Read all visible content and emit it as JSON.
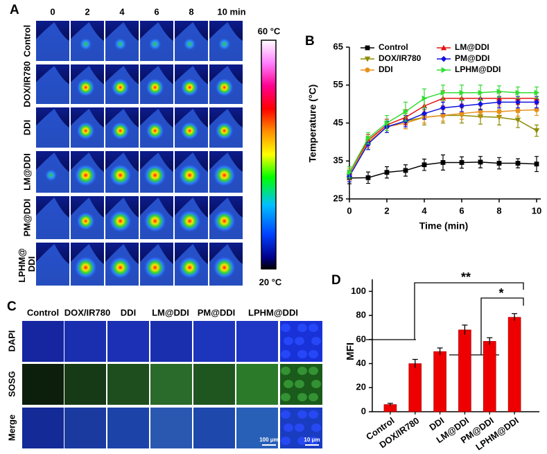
{
  "panel_a": {
    "label": "A",
    "times": [
      "0",
      "2",
      "4",
      "6",
      "8",
      "10 min"
    ],
    "rows": [
      "Control",
      "DOX/IR780",
      "DDI",
      "LM@DDI",
      "PM@DDI",
      "LPHM@ DDI"
    ],
    "colorbar": {
      "max_label": "60 °C",
      "min_label": "20 °C"
    }
  },
  "panel_c": {
    "label": "C",
    "columns": [
      "Control",
      "DOX/IR780",
      "DDI",
      "LM@DDI",
      "PM@DDI",
      "LPHM@DDI"
    ],
    "rows": [
      "DAPI",
      "SOSG",
      "Merge"
    ],
    "scale_bars": [
      "100 μm",
      "10 μm"
    ]
  },
  "chart_data": [
    {
      "type": "line",
      "panel_label": "B",
      "x_label": "Time (min)",
      "y_label": "Temperature (°C)",
      "x": [
        0,
        1,
        2,
        3,
        4,
        5,
        6,
        7,
        8,
        9,
        10
      ],
      "series": [
        {
          "name": "Control",
          "color": "#000000",
          "marker": "square",
          "values": [
            30.5,
            30.6,
            32,
            32.5,
            34,
            34.6,
            34.6,
            34.7,
            34.4,
            34.4,
            34.2
          ],
          "errors": [
            1.5,
            1.5,
            1.5,
            1.5,
            1.5,
            2,
            1.5,
            1.5,
            1.5,
            1.2,
            2
          ]
        },
        {
          "name": "DOX/IR780",
          "color": "#8c8c00",
          "marker": "triangle-down",
          "values": [
            31,
            40,
            44,
            45.5,
            46.5,
            47,
            47,
            46.7,
            46.5,
            45.8,
            43
          ],
          "errors": [
            1.5,
            2,
            1.5,
            2,
            2,
            2,
            2,
            2,
            2,
            2,
            1.5
          ]
        },
        {
          "name": "DDI",
          "color": "#e8901c",
          "marker": "circle",
          "values": [
            31.5,
            40,
            44,
            45,
            46.5,
            47,
            47.5,
            48,
            48,
            48.3,
            48.5
          ],
          "errors": [
            1.5,
            1.5,
            1.5,
            1.5,
            1.5,
            1.5,
            1.5,
            1.5,
            1.5,
            1.5,
            1.5
          ]
        },
        {
          "name": "LM@DDI",
          "color": "#e81010",
          "marker": "triangle-up",
          "values": [
            32,
            40.5,
            44.5,
            46.5,
            49.5,
            51.5,
            51.5,
            51.5,
            51.5,
            51.5,
            51.5
          ],
          "errors": [
            1.5,
            1.5,
            1.5,
            2,
            2,
            2,
            1.5,
            1.5,
            1.5,
            1.5,
            1.5
          ]
        },
        {
          "name": "PM@DDI",
          "color": "#1010e0",
          "marker": "diamond",
          "values": [
            31,
            39.5,
            44,
            45.5,
            47.5,
            49,
            49.5,
            50,
            50.5,
            50.5,
            50.5
          ],
          "errors": [
            1.5,
            1.5,
            1.5,
            1.5,
            1.5,
            1.5,
            1.5,
            1.5,
            1.5,
            1.5,
            1.5
          ]
        },
        {
          "name": "LPHM@DDI",
          "color": "#33dd33",
          "marker": "triangle-right",
          "values": [
            32,
            41,
            45,
            48,
            51.5,
            53,
            53,
            53,
            53.3,
            53,
            53
          ],
          "errors": [
            1.5,
            1.5,
            2,
            2.5,
            2.5,
            2,
            2,
            2,
            1.5,
            1.5,
            1.5
          ]
        }
      ],
      "xlim": [
        0,
        10
      ],
      "ylim": [
        25,
        65
      ],
      "xticks": [
        0,
        2,
        4,
        6,
        8,
        10
      ],
      "yticks": [
        25,
        35,
        45,
        55,
        65
      ],
      "legend": "top-left"
    },
    {
      "type": "bar",
      "panel_label": "D",
      "y_label": "MFI",
      "categories": [
        "Control",
        "DOX/IR780",
        "DDI",
        "LM@DDI",
        "PM@DDI",
        "LPHM@DDI"
      ],
      "values": [
        6,
        40,
        50,
        68,
        58.5,
        78.5
      ],
      "errors": [
        1,
        3.5,
        3,
        4,
        3,
        3
      ],
      "color": "#ee0000",
      "ylim": [
        0,
        110
      ],
      "yticks": [
        0,
        20,
        40,
        60,
        80,
        100
      ],
      "annotations": [
        "**",
        "*"
      ]
    }
  ]
}
